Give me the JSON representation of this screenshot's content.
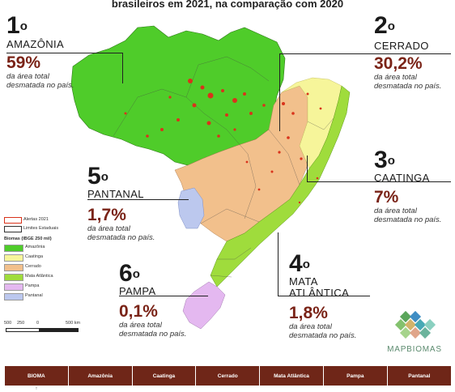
{
  "header": {
    "title": "brasileiros em 2021, na comparação com 2020"
  },
  "callouts": [
    {
      "rank": "1",
      "ordinal": "o",
      "biome": "AMAZÔNIA",
      "percent": "59%",
      "desc1": "da área total",
      "desc2": "desmatada no país."
    },
    {
      "rank": "2",
      "ordinal": "o",
      "biome": "CERRADO",
      "percent": "30,2%",
      "desc1": "da área total",
      "desc2": "desmatada no país."
    },
    {
      "rank": "3",
      "ordinal": "o",
      "biome": "CAATINGA",
      "percent": "7%",
      "desc1": "da área total",
      "desc2": "desmatada no país."
    },
    {
      "rank": "4",
      "ordinal": "o",
      "biome": "MATA",
      "biome2": "ATLÂNTICA",
      "percent": "1,8%",
      "desc1": "da área total",
      "desc2": "desmatada no país."
    },
    {
      "rank": "5",
      "ordinal": "o",
      "biome": "PANTANAL",
      "percent": "1,7%",
      "desc1": "da área total",
      "desc2": "desmatada no país."
    },
    {
      "rank": "6",
      "ordinal": "o",
      "biome": "PAMPA",
      "percent": "0,1%",
      "desc1": "da área total",
      "desc2": "desmatada no país."
    }
  ],
  "legend": {
    "alerts_label": "Alertas 2021",
    "limits_label": "Limites Estaduais",
    "biomes_title": "Biomas (IBGE 250 mil)",
    "items": [
      {
        "label": "Amazônia",
        "color": "#4fcc2a"
      },
      {
        "label": "Caatinga",
        "color": "#f6f59a"
      },
      {
        "label": "Cerrado",
        "color": "#f2c08c"
      },
      {
        "label": "Mata Atlântica",
        "color": "#9fdc3c"
      },
      {
        "label": "Pampa",
        "color": "#e4b8f0"
      },
      {
        "label": "Pantanal",
        "color": "#bcc8ee"
      }
    ]
  },
  "scale": {
    "labels": [
      "500",
      "250",
      "0",
      "500 km"
    ]
  },
  "brand": {
    "name": "MAPBIOMAS"
  },
  "table": {
    "headers": [
      "BIOMA",
      "Amazônia",
      "Caatinga",
      "Cerrado",
      "Mata Atlântica",
      "Pampa",
      "Pantanal"
    ],
    "first_cell": "↑"
  },
  "colors": {
    "amazonia": "#4fcc2a",
    "caatinga": "#f6f59a",
    "cerrado": "#f2c08c",
    "mata_atlantica": "#9fdc3c",
    "pampa": "#e4b8f0",
    "pantanal": "#bcc8ee",
    "alerts": "#d9331b",
    "percent": "#7a2317",
    "table_header": "#6f2618"
  }
}
